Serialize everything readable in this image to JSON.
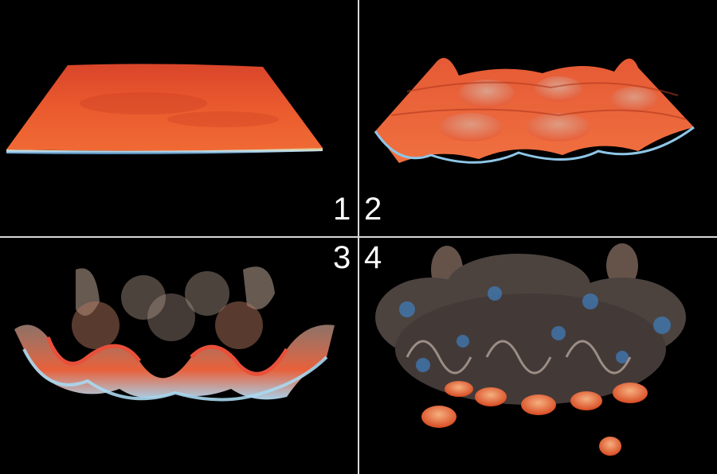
{
  "panels": [
    {
      "label": "1",
      "stage": "flat-sheet"
    },
    {
      "label": "2",
      "stage": "wavy-sheet"
    },
    {
      "label": "3",
      "stage": "curling-sheet"
    },
    {
      "label": "4",
      "stage": "turbulent-mixing"
    }
  ],
  "colors": {
    "background": "#000000",
    "divider": "#d8d8d8",
    "sheet_orange": "#e8502a",
    "sheet_highlight": "#f09a70",
    "edge_blue": "#6fb6e0"
  }
}
